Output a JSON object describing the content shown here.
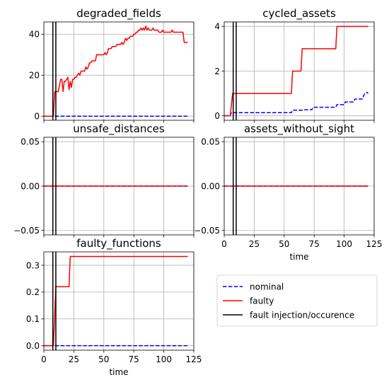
{
  "chart_data": [
    {
      "type": "line",
      "title": "degraded_fields",
      "xlabel": "",
      "xlim": [
        0,
        125
      ],
      "ylim": [
        -2,
        46
      ],
      "xticks": [
        0,
        25,
        50,
        75,
        100,
        125
      ],
      "show_xticklabels": false,
      "yticks": [
        0,
        20,
        40
      ],
      "yticklabels": [
        "0",
        "20",
        "40"
      ],
      "grid": true,
      "vlines": [
        7.5,
        10
      ],
      "series": [
        {
          "name": "nominal",
          "style": "dashed",
          "color": "#0000ff",
          "points": [
            [
              0,
              0
            ],
            [
              120,
              0
            ]
          ]
        },
        {
          "name": "faulty",
          "style": "solid",
          "color": "#ff0000",
          "points": [
            [
              0,
              0
            ],
            [
              8,
              0
            ],
            [
              9,
              12
            ],
            [
              10,
              12
            ],
            [
              11,
              12
            ],
            [
              12,
              12
            ],
            [
              13,
              15
            ],
            [
              14,
              18
            ],
            [
              15,
              18
            ],
            [
              16,
              12
            ],
            [
              17,
              17
            ],
            [
              18,
              17
            ],
            [
              19,
              18
            ],
            [
              20,
              19
            ],
            [
              21,
              13
            ],
            [
              22,
              17
            ],
            [
              23,
              14
            ],
            [
              24,
              18
            ],
            [
              25,
              18
            ],
            [
              26,
              19
            ],
            [
              27,
              19
            ],
            [
              28,
              20
            ],
            [
              29,
              21
            ],
            [
              30,
              20
            ],
            [
              31,
              22
            ],
            [
              33,
              22
            ],
            [
              34,
              22
            ],
            [
              35,
              24
            ],
            [
              36,
              23
            ],
            [
              37,
              24
            ],
            [
              38,
              26
            ],
            [
              39,
              26
            ],
            [
              40,
              27
            ],
            [
              42,
              27
            ],
            [
              43,
              27
            ],
            [
              44,
              30
            ],
            [
              49,
              30
            ],
            [
              50,
              30
            ],
            [
              51,
              31
            ],
            [
              52,
              30
            ],
            [
              53,
              31
            ],
            [
              54,
              33
            ],
            [
              56,
              33
            ],
            [
              57,
              34
            ],
            [
              60,
              34
            ],
            [
              61,
              35
            ],
            [
              64,
              35
            ],
            [
              65,
              36
            ],
            [
              66,
              35
            ],
            [
              67,
              36
            ],
            [
              68,
              38
            ],
            [
              69,
              37
            ],
            [
              70,
              38
            ],
            [
              71,
              38
            ],
            [
              72,
              39
            ],
            [
              74,
              39
            ],
            [
              75,
              40
            ],
            [
              76,
              40
            ],
            [
              77,
              41
            ],
            [
              78,
              41
            ],
            [
              79,
              42
            ],
            [
              80,
              42
            ],
            [
              81,
              43
            ],
            [
              82,
              42
            ],
            [
              83,
              43
            ],
            [
              84,
              42
            ],
            [
              85,
              44
            ],
            [
              86,
              42
            ],
            [
              87,
              43
            ],
            [
              88,
              42
            ],
            [
              90,
              42
            ],
            [
              91,
              43
            ],
            [
              92,
              42
            ],
            [
              93,
              42
            ],
            [
              95,
              42
            ],
            [
              96,
              41
            ],
            [
              97,
              41
            ],
            [
              98,
              41
            ],
            [
              99,
              42
            ],
            [
              100,
              41
            ],
            [
              101,
              41
            ],
            [
              102,
              41
            ],
            [
              103,
              41
            ],
            [
              104,
              41
            ],
            [
              105,
              41
            ],
            [
              106,
              41
            ],
            [
              107,
              42
            ],
            [
              108,
              41
            ],
            [
              116,
              41
            ],
            [
              117,
              36
            ],
            [
              120,
              36
            ]
          ]
        }
      ]
    },
    {
      "type": "line",
      "title": "cycled_assets",
      "xlabel": "",
      "xlim": [
        0,
        125
      ],
      "ylim": [
        -0.2,
        4.2
      ],
      "xticks": [
        0,
        25,
        50,
        75,
        100,
        125
      ],
      "show_xticklabels": false,
      "yticks": [
        0,
        2,
        4
      ],
      "yticklabels": [
        "0",
        "2",
        "4"
      ],
      "grid": true,
      "vlines": [
        7.5,
        10
      ],
      "series": [
        {
          "name": "nominal",
          "style": "dashed",
          "color": "#0000ff",
          "points": [
            [
              0,
              0
            ],
            [
              5,
              0
            ],
            [
              6,
              0.14
            ],
            [
              56,
              0.14
            ],
            [
              57,
              0.25
            ],
            [
              66,
              0.25
            ],
            [
              67,
              0.27
            ],
            [
              73,
              0.27
            ],
            [
              74,
              0.38
            ],
            [
              93,
              0.38
            ],
            [
              94,
              0.5
            ],
            [
              100,
              0.5
            ],
            [
              101,
              0.62
            ],
            [
              108,
              0.62
            ],
            [
              109,
              0.75
            ],
            [
              115,
              0.75
            ],
            [
              116,
              0.86
            ],
            [
              117,
              1.0
            ],
            [
              119,
              1.05
            ],
            [
              120,
              1.0
            ]
          ]
        },
        {
          "name": "faulty",
          "style": "solid",
          "color": "#ff0000",
          "points": [
            [
              0,
              0
            ],
            [
              5,
              0
            ],
            [
              7,
              1
            ],
            [
              56,
              1
            ],
            [
              57,
              2
            ],
            [
              64,
              2
            ],
            [
              65,
              3
            ],
            [
              93,
              3
            ],
            [
              94,
              4
            ],
            [
              120,
              4
            ]
          ]
        }
      ]
    },
    {
      "type": "line",
      "title": "unsafe_distances",
      "xlabel": "",
      "xlim": [
        0,
        125
      ],
      "ylim": [
        -0.055,
        0.055
      ],
      "xticks": [
        0,
        25,
        50,
        75,
        100,
        125
      ],
      "show_xticklabels": false,
      "yticks": [
        -0.05,
        0,
        0.05
      ],
      "yticklabels": [
        "−0.05",
        "0.00",
        "0.05"
      ],
      "grid": true,
      "vlines": [
        7.5,
        10
      ],
      "series": [
        {
          "name": "nominal",
          "style": "dashed",
          "color": "#0000ff",
          "points": [
            [
              0,
              0
            ],
            [
              120,
              0
            ]
          ]
        },
        {
          "name": "faulty",
          "style": "solid",
          "color": "#ff0000",
          "points": [
            [
              0,
              0
            ],
            [
              120,
              0
            ]
          ]
        }
      ]
    },
    {
      "type": "line",
      "title": "assets_without_sight",
      "xlabel": "time",
      "xlim": [
        0,
        125
      ],
      "ylim": [
        -0.055,
        0.055
      ],
      "xticks": [
        0,
        25,
        50,
        75,
        100,
        125
      ],
      "show_xticklabels": true,
      "yticks": [
        -0.05,
        0,
        0.05
      ],
      "yticklabels": [
        "−0.05",
        "0.00",
        "0.05"
      ],
      "grid": true,
      "vlines": [
        7.5,
        10
      ],
      "series": [
        {
          "name": "nominal",
          "style": "dashed",
          "color": "#0000ff",
          "points": [
            [
              0,
              0
            ],
            [
              120,
              0
            ]
          ]
        },
        {
          "name": "faulty",
          "style": "solid",
          "color": "#ff0000",
          "points": [
            [
              0,
              0
            ],
            [
              120,
              0
            ]
          ]
        }
      ]
    },
    {
      "type": "line",
      "title": "faulty_functions",
      "xlabel": "time",
      "xlim": [
        0,
        125
      ],
      "ylim": [
        -0.0167,
        0.35
      ],
      "xticks": [
        0,
        25,
        50,
        75,
        100,
        125
      ],
      "show_xticklabels": true,
      "yticks": [
        0,
        0.1,
        0.2,
        0.3
      ],
      "yticklabels": [
        "0.0",
        "0.1",
        "0.2",
        "0.3"
      ],
      "grid": true,
      "vlines": [
        7.5,
        10
      ],
      "series": [
        {
          "name": "nominal",
          "style": "dashed",
          "color": "#0000ff",
          "points": [
            [
              0,
              0
            ],
            [
              120,
              0
            ]
          ]
        },
        {
          "name": "faulty",
          "style": "solid",
          "color": "#ff0000",
          "points": [
            [
              0,
              0
            ],
            [
              8,
              0
            ],
            [
              9,
              0.11
            ],
            [
              10,
              0.22
            ],
            [
              21,
              0.22
            ],
            [
              22,
              0.333
            ],
            [
              120,
              0.333
            ]
          ]
        }
      ]
    }
  ],
  "legend": {
    "placement": "lower-right",
    "entries": [
      {
        "label": "nominal",
        "color": "#0000ff",
        "style": "dashed"
      },
      {
        "label": "faulty",
        "color": "#ff0000",
        "style": "solid"
      },
      {
        "label": "fault injection/occurence",
        "color": "#000000",
        "style": "solid"
      }
    ]
  }
}
